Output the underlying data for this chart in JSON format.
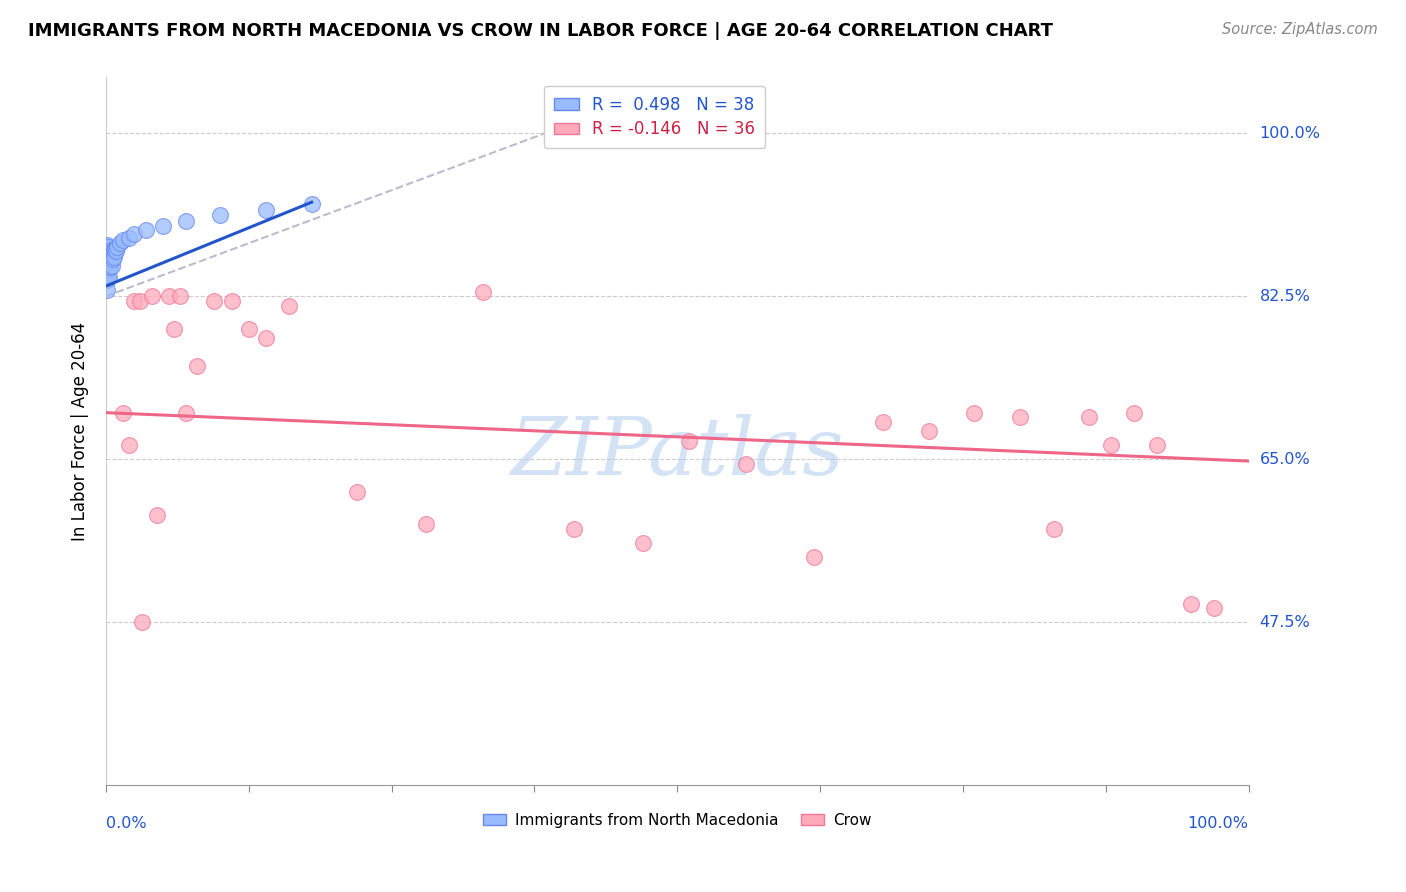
{
  "title": "IMMIGRANTS FROM NORTH MACEDONIA VS CROW IN LABOR FORCE | AGE 20-64 CORRELATION CHART",
  "source": "Source: ZipAtlas.com",
  "ylabel": "In Labor Force | Age 20-64",
  "y_ticks_pct": [
    47.5,
    65.0,
    82.5,
    100.0
  ],
  "y_tick_labels": [
    "47.5%",
    "65.0%",
    "82.5%",
    "100.0%"
  ],
  "legend_label1": "Immigrants from North Macedonia",
  "legend_label2": "Crow",
  "r1": 0.498,
  "n1": 38,
  "r2": -0.146,
  "n2": 36,
  "blue_color": "#99bbff",
  "pink_color": "#ffaabb",
  "blue_line_color": "#2255cc",
  "pink_line_color": "#ee6688",
  "diagonal_color": "#bbbbcc",
  "grid_color": "#cccccc",
  "watermark_color": "#b0ccee",
  "blue_x": [
    0.001,
    0.001,
    0.001,
    0.001,
    0.001,
    0.001,
    0.002,
    0.002,
    0.002,
    0.002,
    0.002,
    0.003,
    0.003,
    0.003,
    0.003,
    0.004,
    0.004,
    0.004,
    0.005,
    0.005,
    0.005,
    0.006,
    0.006,
    0.007,
    0.007,
    0.008,
    0.009,
    0.01,
    0.012,
    0.015,
    0.02,
    0.025,
    0.035,
    0.05,
    0.07,
    0.1,
    0.14,
    0.18
  ],
  "blue_y": [
    0.872,
    0.862,
    0.852,
    0.842,
    0.832,
    0.88,
    0.875,
    0.865,
    0.855,
    0.845,
    0.878,
    0.87,
    0.862,
    0.854,
    0.846,
    0.872,
    0.864,
    0.856,
    0.875,
    0.867,
    0.858,
    0.873,
    0.865,
    0.875,
    0.867,
    0.876,
    0.874,
    0.878,
    0.882,
    0.885,
    0.888,
    0.892,
    0.896,
    0.9,
    0.906,
    0.912,
    0.918,
    0.924
  ],
  "pink_x": [
    0.015,
    0.02,
    0.025,
    0.03,
    0.032,
    0.04,
    0.045,
    0.055,
    0.06,
    0.065,
    0.07,
    0.08,
    0.095,
    0.11,
    0.125,
    0.14,
    0.16,
    0.22,
    0.28,
    0.33,
    0.41,
    0.47,
    0.51,
    0.56,
    0.62,
    0.68,
    0.72,
    0.76,
    0.8,
    0.83,
    0.86,
    0.88,
    0.9,
    0.92,
    0.95,
    0.97
  ],
  "pink_y": [
    0.7,
    0.665,
    0.82,
    0.82,
    0.475,
    0.825,
    0.59,
    0.825,
    0.79,
    0.825,
    0.7,
    0.75,
    0.82,
    0.82,
    0.79,
    0.78,
    0.815,
    0.615,
    0.58,
    0.83,
    0.575,
    0.56,
    0.67,
    0.645,
    0.545,
    0.69,
    0.68,
    0.7,
    0.695,
    0.575,
    0.695,
    0.665,
    0.7,
    0.665,
    0.495,
    0.49
  ],
  "xlim": [
    0.0,
    1.0
  ],
  "ylim": [
    0.3,
    1.06
  ],
  "blue_line_x": [
    0.0,
    0.18
  ],
  "pink_line_x": [
    0.0,
    1.0
  ],
  "pink_line_y_start": 0.7,
  "pink_line_y_end": 0.648,
  "blue_line_y_start": 0.836,
  "blue_line_y_end": 0.926
}
